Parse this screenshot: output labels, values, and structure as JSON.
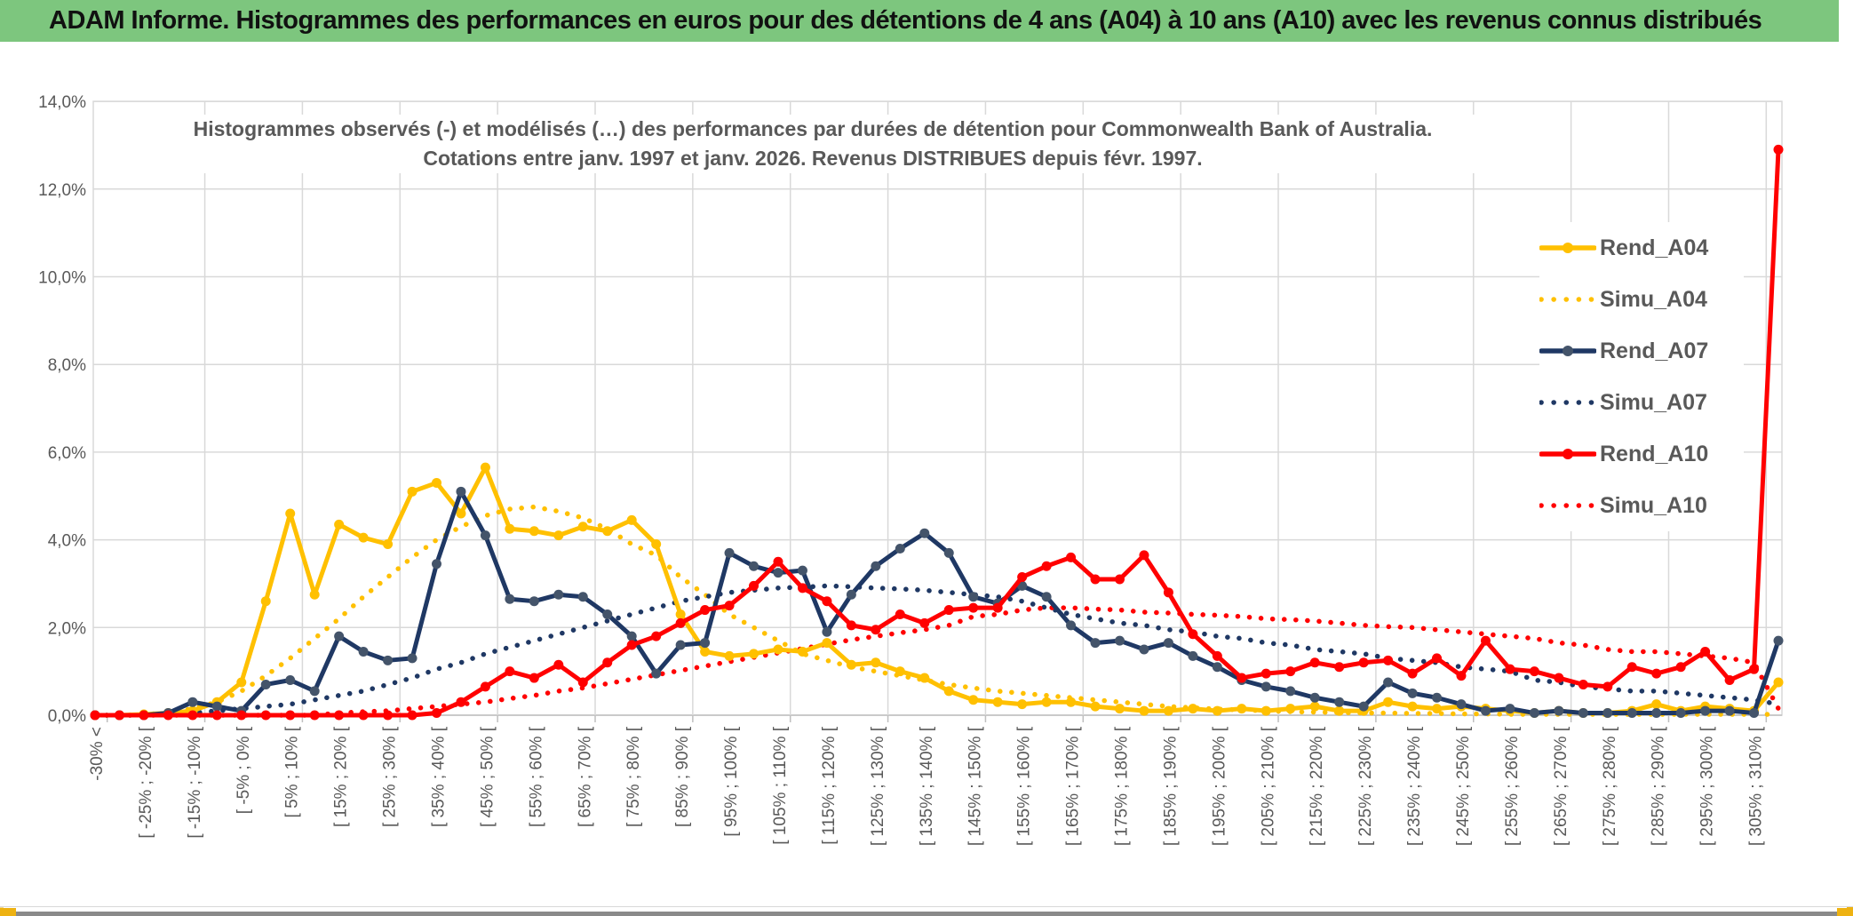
{
  "window": {
    "header_title": "ADAM Informe. Histogrammes des performances en euros pour des détentions de 4 ans (A04) à 10 ans (A10) avec les revenus connus distribués"
  },
  "colors": {
    "header_green": "#7dc67e",
    "gold_accent": "#eeb211",
    "bottom_band_gray": "#8a8a8a",
    "grid_gray": "#d9d9d9",
    "axis_gray": "#bfbfbf",
    "text_gray": "#595959",
    "gold_series": "#ffc000",
    "navy_series": "#1f3864",
    "navy_marker": "#44546a",
    "red_series": "#ff0000"
  },
  "chart_data": {
    "type": "line",
    "title": "Histogrammes observés (-) et modélisés (…) des performances par durées de détention pour Commonwealth Bank of Australia.",
    "subtitle": "Cotations entre janv. 1997 et janv. 2026. Revenus DISTRIBUES depuis févr. 1997.",
    "grid": true,
    "legend_position": "right-overlay",
    "y_axis": {
      "min": 0,
      "max": 14,
      "step": 2,
      "unit": "percent",
      "tick_labels": [
        "14,0%",
        "12,0%",
        "10,0%",
        "8,0%",
        "6,0%",
        "4,0%",
        "2,0%",
        "0,0%"
      ]
    },
    "x_axis": {
      "bin_count": 70,
      "labels_on_every_other_bin": true,
      "tick_labels": [
        "-30% <",
        "[ -25% ; -20% [",
        "[ -15% ; -10% [",
        "[ -5% ; 0% [",
        "[ 5% ; 10% [",
        "[ 15% ; 20% [",
        "[ 25% ; 30% [",
        "[ 35% ; 40% [",
        "[ 45% ; 50% [",
        "[ 55% ; 60% [",
        "[ 65% ; 70% [",
        "[ 75% ; 80% [",
        "[ 85% ; 90% [",
        "[ 95% ; 100% [",
        "[ 105% ; 110% [",
        "[ 115% ; 120% [",
        "[ 125% ; 130% [",
        "[ 135% ; 140% [",
        "[ 145% ; 150% [",
        "[ 155% ; 160% [",
        "[ 165% ; 170% [",
        "[ 175% ; 180% [",
        "[ 185% ; 190% [",
        "[ 195% ; 200% [",
        "[ 205% ; 210% [",
        "[ 215% ; 220% [",
        "[ 225% ; 230% [",
        "[ 235% ; 240% [",
        "[ 245% ; 250% [",
        "[ 255% ; 260% [",
        "[ 265% ; 270% [",
        "[ 275% ; 280% [",
        "[ 285% ; 290% [",
        "[ 295% ; 300% [",
        "[ 305% ; 310% ["
      ]
    },
    "series": [
      {
        "name": "Simu_A04",
        "color": "#ffc000",
        "line_style": "dotted",
        "marker": false,
        "values": [
          0,
          0,
          0.02,
          0.05,
          0.15,
          0.3,
          0.55,
          0.9,
          1.3,
          1.75,
          2.2,
          2.7,
          3.15,
          3.6,
          4.0,
          4.3,
          4.55,
          4.7,
          4.75,
          4.65,
          4.5,
          4.25,
          3.9,
          3.65,
          3.15,
          2.75,
          2.3,
          2.0,
          1.7,
          1.4,
          1.25,
          1.1,
          1.0,
          0.9,
          0.8,
          0.7,
          0.62,
          0.55,
          0.5,
          0.45,
          0.4,
          0.35,
          0.3,
          0.25,
          0.2,
          0.17,
          0.14,
          0.12,
          0.1,
          0.08,
          0.07,
          0.06,
          0.05,
          0.05,
          0.04,
          0.04,
          0.03,
          0.03,
          0.02,
          0.02,
          0.02,
          0.02,
          0.02,
          0.02,
          0.02,
          0.02,
          0.02,
          0.02,
          0.02,
          0.02
        ]
      },
      {
        "name": "Simu_A07",
        "color": "#1f3864",
        "line_style": "dotted",
        "marker": false,
        "values": [
          0,
          0,
          0,
          0.02,
          0.05,
          0.1,
          0.15,
          0.2,
          0.25,
          0.35,
          0.45,
          0.55,
          0.7,
          0.85,
          1.05,
          1.2,
          1.4,
          1.55,
          1.7,
          1.85,
          2.0,
          2.15,
          2.3,
          2.45,
          2.6,
          2.7,
          2.8,
          2.85,
          2.9,
          2.92,
          2.95,
          2.93,
          2.9,
          2.88,
          2.85,
          2.8,
          2.75,
          2.7,
          2.6,
          2.45,
          2.3,
          2.2,
          2.1,
          2.05,
          1.95,
          1.9,
          1.8,
          1.75,
          1.65,
          1.6,
          1.5,
          1.45,
          1.4,
          1.3,
          1.25,
          1.2,
          1.1,
          1.05,
          1.0,
          0.8,
          0.75,
          0.65,
          0.6,
          0.55,
          0.55,
          0.5,
          0.45,
          0.4,
          0.35,
          0.25
        ]
      },
      {
        "name": "Simu_A10",
        "color": "#ff0000",
        "line_style": "dotted",
        "marker": false,
        "values": [
          0,
          0,
          0,
          0,
          0,
          0,
          0,
          0,
          0,
          0,
          0.05,
          0.08,
          0.1,
          0.15,
          0.2,
          0.25,
          0.3,
          0.38,
          0.45,
          0.55,
          0.62,
          0.72,
          0.82,
          0.92,
          1.02,
          1.12,
          1.22,
          1.32,
          1.42,
          1.52,
          1.62,
          1.72,
          1.8,
          1.88,
          1.95,
          2.05,
          2.25,
          2.3,
          2.4,
          2.45,
          2.45,
          2.42,
          2.4,
          2.35,
          2.33,
          2.3,
          2.28,
          2.25,
          2.2,
          2.18,
          2.15,
          2.1,
          2.05,
          2.02,
          2.0,
          1.95,
          1.9,
          1.85,
          1.8,
          1.75,
          1.65,
          1.6,
          1.5,
          1.45,
          1.45,
          1.4,
          1.35,
          1.3,
          1.2,
          0.15
        ]
      },
      {
        "name": "Rend_A04",
        "color": "#ffc000",
        "line_style": "solid",
        "marker": true,
        "marker_color": "#ffc000",
        "values": [
          0,
          0,
          0.02,
          0.05,
          0.1,
          0.3,
          0.75,
          2.6,
          4.6,
          2.75,
          4.35,
          4.05,
          3.9,
          5.1,
          5.3,
          4.6,
          5.65,
          4.25,
          4.2,
          4.1,
          4.3,
          4.2,
          4.45,
          3.9,
          2.3,
          1.45,
          1.35,
          1.4,
          1.5,
          1.45,
          1.65,
          1.15,
          1.2,
          1.0,
          0.85,
          0.55,
          0.35,
          0.3,
          0.25,
          0.3,
          0.3,
          0.2,
          0.15,
          0.1,
          0.1,
          0.15,
          0.1,
          0.15,
          0.1,
          0.15,
          0.2,
          0.1,
          0.1,
          0.3,
          0.2,
          0.15,
          0.2,
          0.15,
          0.1,
          0.05,
          0.1,
          0.05,
          0.05,
          0.1,
          0.25,
          0.1,
          0.2,
          0.15,
          0.1,
          0.75
        ]
      },
      {
        "name": "Rend_A07",
        "color": "#1f3864",
        "line_style": "solid",
        "marker": true,
        "marker_color": "#44546a",
        "values": [
          0,
          0,
          0,
          0.05,
          0.3,
          0.2,
          0.1,
          0.7,
          0.8,
          0.55,
          1.8,
          1.45,
          1.25,
          1.3,
          3.45,
          5.1,
          4.1,
          2.65,
          2.6,
          2.75,
          2.7,
          2.3,
          1.8,
          0.95,
          1.6,
          1.65,
          3.7,
          3.4,
          3.25,
          3.3,
          1.9,
          2.75,
          3.4,
          3.8,
          4.15,
          3.7,
          2.7,
          2.55,
          2.95,
          2.7,
          2.05,
          1.65,
          1.7,
          1.5,
          1.65,
          1.35,
          1.1,
          0.8,
          0.65,
          0.55,
          0.4,
          0.3,
          0.2,
          0.75,
          0.5,
          0.4,
          0.25,
          0.1,
          0.15,
          0.05,
          0.1,
          0.05,
          0.05,
          0.05,
          0.05,
          0.05,
          0.1,
          0.1,
          0.05,
          1.7
        ]
      },
      {
        "name": "Rend_A10",
        "color": "#ff0000",
        "line_style": "solid",
        "marker": true,
        "marker_color": "#ff0000",
        "values": [
          0,
          0,
          0,
          0,
          0,
          0,
          0,
          0,
          0,
          0,
          0,
          0,
          0,
          0,
          0.05,
          0.3,
          0.65,
          1.0,
          0.85,
          1.15,
          0.75,
          1.2,
          1.6,
          1.8,
          2.1,
          2.4,
          2.5,
          2.95,
          3.5,
          2.9,
          2.6,
          2.05,
          1.95,
          2.3,
          2.1,
          2.4,
          2.45,
          2.45,
          3.15,
          3.4,
          3.6,
          3.1,
          3.1,
          3.65,
          2.8,
          1.85,
          1.35,
          0.85,
          0.95,
          1.0,
          1.2,
          1.1,
          1.2,
          1.25,
          0.95,
          1.3,
          0.9,
          1.7,
          1.05,
          1.0,
          0.85,
          0.7,
          0.65,
          1.1,
          0.95,
          1.1,
          1.45,
          0.8,
          1.05,
          12.9
        ]
      }
    ]
  },
  "legend": [
    {
      "label": "Rend_A04",
      "color": "#ffc000",
      "style": "solid",
      "marker_color": "#ffc000"
    },
    {
      "label": "Simu_A04",
      "color": "#ffc000",
      "style": "dotted"
    },
    {
      "label": "Rend_A07",
      "color": "#1f3864",
      "style": "solid",
      "marker_color": "#44546a"
    },
    {
      "label": "Simu_A07",
      "color": "#1f3864",
      "style": "dotted"
    },
    {
      "label": "Rend_A10",
      "color": "#ff0000",
      "style": "solid",
      "marker_color": "#ff0000"
    },
    {
      "label": "Simu_A10",
      "color": "#ff0000",
      "style": "dotted"
    }
  ]
}
